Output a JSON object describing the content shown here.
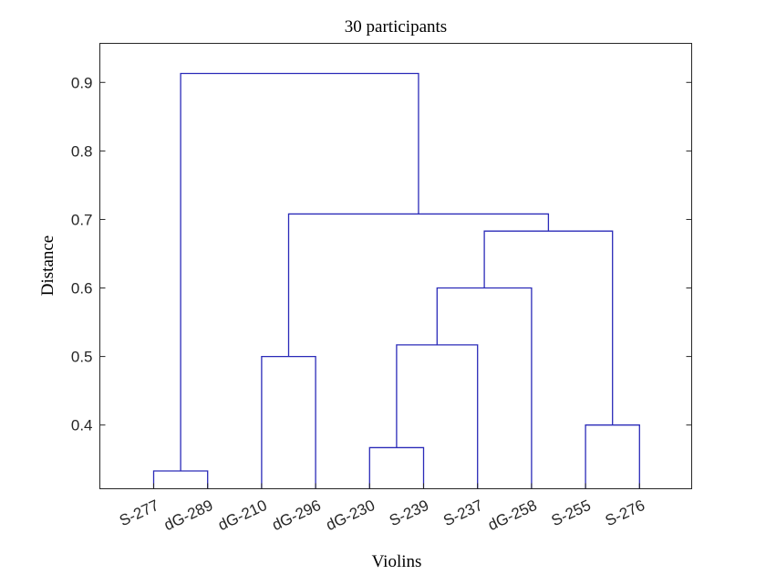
{
  "chart_data": {
    "type": "dendrogram",
    "title": "30 participants",
    "xlabel": "Violins",
    "ylabel": "Distance",
    "ylim": [
      0.307,
      0.957
    ],
    "yticks": [
      0.4,
      0.5,
      0.6,
      0.7,
      0.8,
      0.9
    ],
    "ytick_labels": [
      "0.4",
      "0.5",
      "0.6",
      "0.7",
      "0.8",
      "0.9"
    ],
    "leaves": [
      "S-277",
      "dG-289",
      "dG-210",
      "dG-296",
      "dG-230",
      "S-239",
      "S-237",
      "dG-258",
      "S-255",
      "S-276"
    ],
    "merges": [
      {
        "left": "leaf:0",
        "right": "leaf:1",
        "height": 0.333
      },
      {
        "left": "leaf:2",
        "right": "leaf:3",
        "height": 0.5
      },
      {
        "left": "leaf:4",
        "right": "leaf:5",
        "height": 0.367
      },
      {
        "left": "merge:2",
        "right": "leaf:6",
        "height": 0.517
      },
      {
        "left": "merge:3",
        "right": "leaf:7",
        "height": 0.6
      },
      {
        "left": "leaf:8",
        "right": "leaf:9",
        "height": 0.4
      },
      {
        "left": "merge:4",
        "right": "merge:5",
        "height": 0.683
      },
      {
        "left": "merge:1",
        "right": "merge:6",
        "height": 0.708
      },
      {
        "left": "merge:0",
        "right": "merge:7",
        "height": 0.913
      }
    ],
    "line_color": "#2a2ab8",
    "grid": false
  }
}
